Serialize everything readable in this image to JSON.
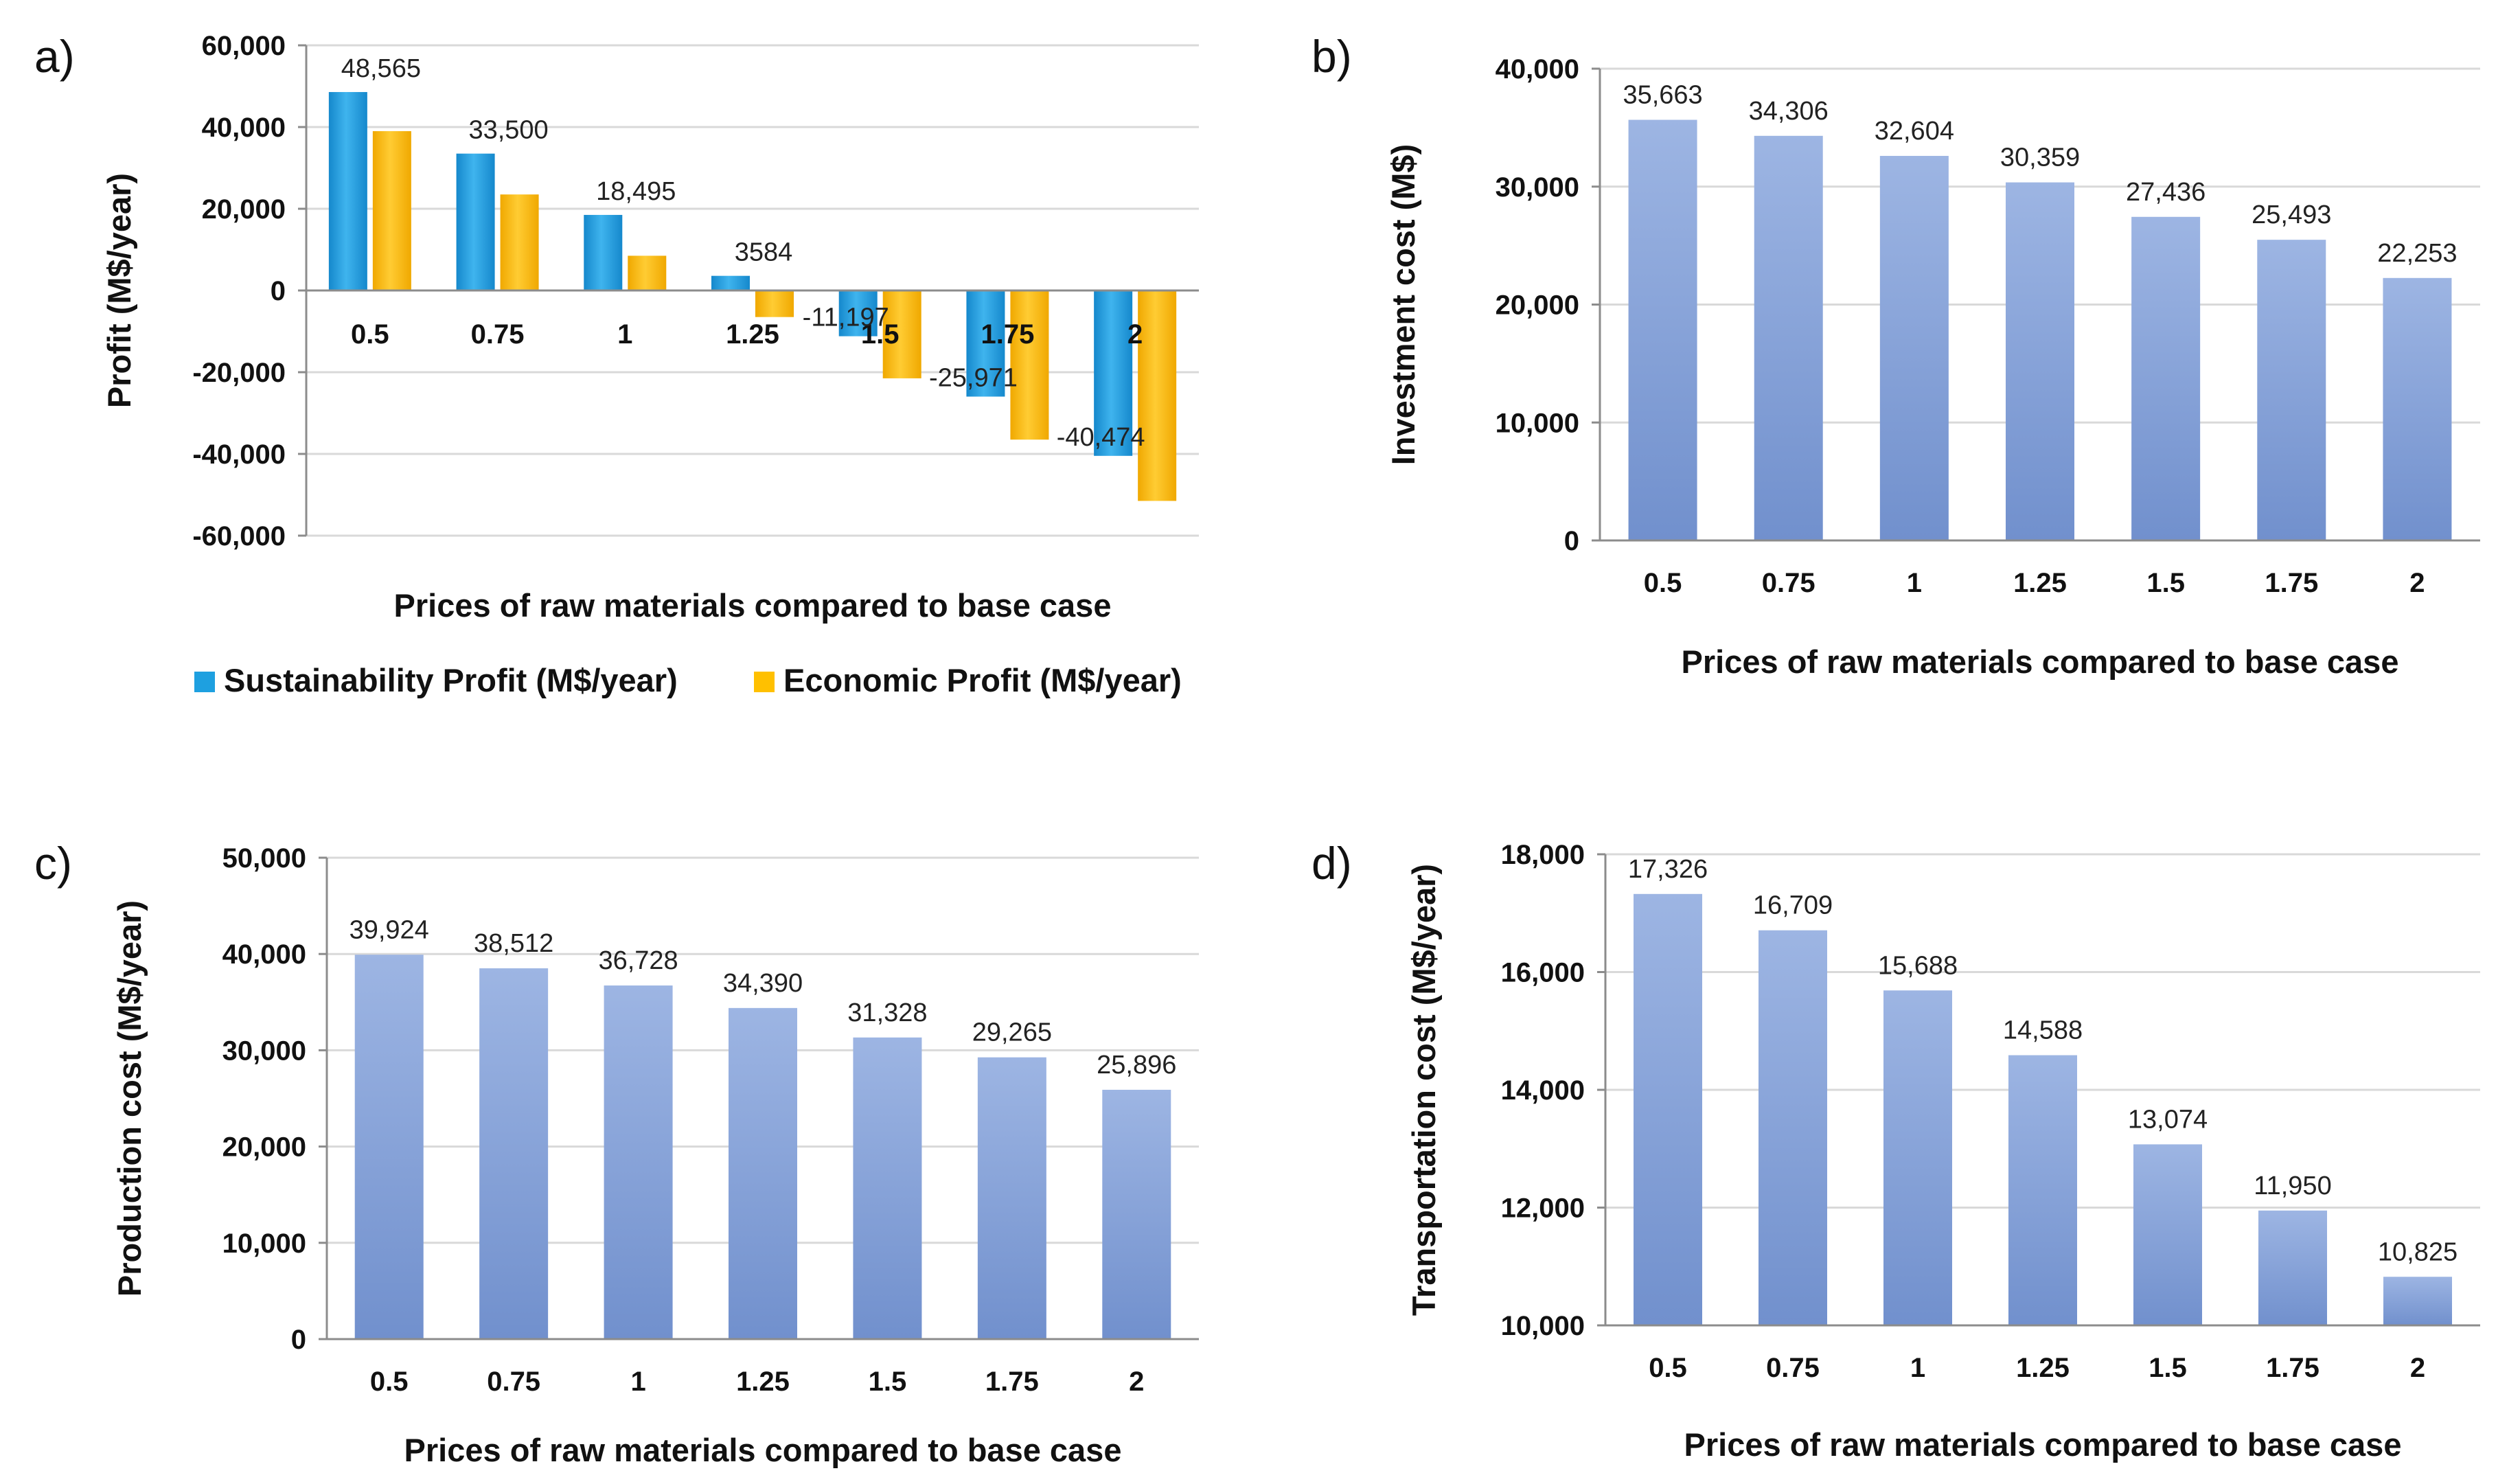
{
  "chart_data": [
    {
      "panel": "a)",
      "type": "bar",
      "categories": [
        "0.5",
        "0.75",
        "1",
        "1.25",
        "1.5",
        "1.75",
        "2"
      ],
      "series": [
        {
          "name": "Sustainability Profit (M$/year)",
          "color": "#1ea0e0",
          "values": [
            48565,
            33500,
            18495,
            3584,
            -11197,
            -25971,
            -40474
          ],
          "labels": [
            "48,565",
            "33,500",
            "18,495",
            "3584",
            "-11,197",
            "-25,971",
            "-40,474"
          ]
        },
        {
          "name": "Economic Profit (M$/year)",
          "color": "#ffc000",
          "values": [
            39000,
            23500,
            8500,
            -6500,
            -21500,
            -36500,
            -51500
          ]
        }
      ],
      "yticks": [
        "60,000",
        "40,000",
        "20,000",
        "0",
        "-20,000",
        "-40,000",
        "-60,000"
      ],
      "ylim": [
        -60000,
        60000
      ],
      "xlabel": "Prices of raw materials compared to base case",
      "ylabel": "Profit  (M$/year)",
      "legend": "bottom"
    },
    {
      "panel": "b)",
      "type": "bar",
      "categories": [
        "0.5",
        "0.75",
        "1",
        "1.25",
        "1.5",
        "1.75",
        "2"
      ],
      "series": [
        {
          "name": "Investment cost",
          "color": "#8eaadb",
          "values": [
            35663,
            34306,
            32604,
            30359,
            27436,
            25493,
            22253
          ],
          "labels": [
            "35,663",
            "34,306",
            "32,604",
            "30,359",
            "27,436",
            "25,493",
            "22,253"
          ]
        }
      ],
      "yticks": [
        "40,000",
        "30,000",
        "20,000",
        "10,000",
        "0"
      ],
      "ylim": [
        0,
        40000
      ],
      "xlabel": "Prices of raw materials compared to base case",
      "ylabel": "Investment cost (M$)"
    },
    {
      "panel": "c)",
      "type": "bar",
      "categories": [
        "0.5",
        "0.75",
        "1",
        "1.25",
        "1.5",
        "1.75",
        "2"
      ],
      "series": [
        {
          "name": "Production cost",
          "color": "#8eaadb",
          "values": [
            39924,
            38512,
            36728,
            34390,
            31328,
            29265,
            25896
          ],
          "labels": [
            "39,924",
            "38,512",
            "36,728",
            "34,390",
            "31,328",
            "29,265",
            "25,896"
          ]
        }
      ],
      "yticks": [
        "50,000",
        "40,000",
        "30,000",
        "20,000",
        "10,000",
        "0"
      ],
      "ylim": [
        0,
        50000
      ],
      "xlabel": "Prices of raw materials compared to base case",
      "ylabel": "Production cost (M$/year)"
    },
    {
      "panel": "d)",
      "type": "bar",
      "categories": [
        "0.5",
        "0.75",
        "1",
        "1.25",
        "1.5",
        "1.75",
        "2"
      ],
      "series": [
        {
          "name": "Transportation cost",
          "color": "#8eaadb",
          "values": [
            17326,
            16709,
            15688,
            14588,
            13074,
            11950,
            10825
          ],
          "labels": [
            "17,326",
            "16,709",
            "15,688",
            "14,588",
            "13,074",
            "11,950",
            "10,825"
          ]
        }
      ],
      "yticks": [
        "18,000",
        "16,000",
        "14,000",
        "12,000",
        "10,000"
      ],
      "ylim": [
        10000,
        18000
      ],
      "xlabel": "Prices of raw materials compared to base case",
      "ylabel": "Transportation cost (M$/year)"
    }
  ]
}
